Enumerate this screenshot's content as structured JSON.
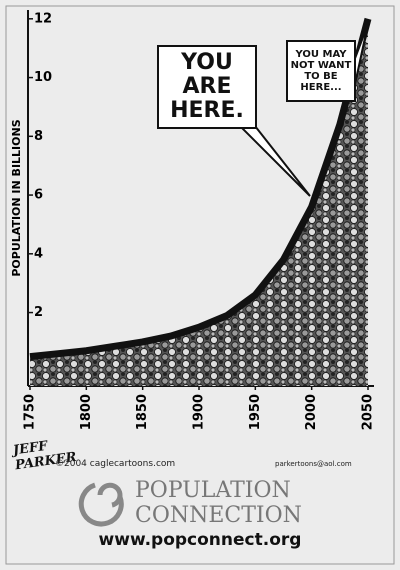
{
  "chart_data": {
    "type": "area",
    "y_label": "POPULATION IN BILLIONS",
    "x": [
      1750,
      1775,
      1800,
      1825,
      1850,
      1875,
      1900,
      1925,
      1950,
      1975,
      2000,
      2025,
      2050
    ],
    "values": [
      0.5,
      0.6,
      0.7,
      0.85,
      1.0,
      1.2,
      1.5,
      1.9,
      2.6,
      3.8,
      5.6,
      8.4,
      12
    ],
    "color": "#111111",
    "xlim": [
      1750,
      2050
    ],
    "xticks": [
      1750,
      1800,
      1850,
      1900,
      1950,
      2000,
      2050
    ],
    "ylim": [
      -0.5,
      12.3
    ],
    "yticks": [
      2,
      4,
      6,
      8,
      10,
      12
    ],
    "annotations": [
      "YOU ARE HERE.",
      "YOU MAY NOT WANT TO BE HERE..."
    ]
  },
  "credits": {
    "signature": "JEFF PARKER",
    "copyright": "©2004 caglecartoons.com",
    "email": "parkertoons@aol.com"
  },
  "footer": {
    "org_line1": "POPULATION",
    "org_line2": "CONNECTION",
    "url": "www.popconnect.org"
  }
}
